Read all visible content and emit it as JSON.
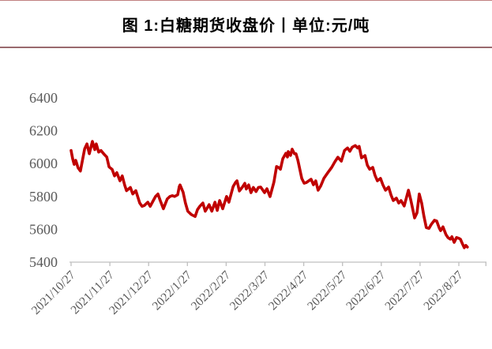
{
  "figure": {
    "title": "图 1:白糖期货收盘价丨单位:元/吨"
  },
  "chart_data": {
    "type": "line",
    "title": "白糖期货收盘价",
    "unit": "元/吨",
    "xlabel": "",
    "ylabel": "",
    "ylim": [
      5400,
      6400
    ],
    "y_ticks": [
      6400,
      6200,
      6000,
      5800,
      5600,
      5400
    ],
    "x_labels": [
      "2021/10/27",
      "2021/11/27",
      "2021/12/27",
      "2022/1/27",
      "2022/2/27",
      "2022/3/27",
      "2022/4/27",
      "2022/5/27",
      "2022/6/27",
      "2022/7/27",
      "2022/8/27"
    ],
    "grid": false,
    "legend": "none",
    "x_unit": "months_after_2021_10_27",
    "series": [
      {
        "name": "白糖期货收盘价",
        "color": "#C00000",
        "points": [
          [
            0.0,
            6080
          ],
          [
            0.04,
            6030
          ],
          [
            0.08,
            5995
          ],
          [
            0.12,
            6020
          ],
          [
            0.18,
            5975
          ],
          [
            0.24,
            5955
          ],
          [
            0.31,
            6040
          ],
          [
            0.35,
            6090
          ],
          [
            0.41,
            6120
          ],
          [
            0.47,
            6060
          ],
          [
            0.55,
            6135
          ],
          [
            0.61,
            6085
          ],
          [
            0.65,
            6120
          ],
          [
            0.71,
            6070
          ],
          [
            0.77,
            6080
          ],
          [
            0.86,
            6055
          ],
          [
            0.92,
            6040
          ],
          [
            0.98,
            5980
          ],
          [
            1.06,
            5965
          ],
          [
            1.12,
            5925
          ],
          [
            1.18,
            5945
          ],
          [
            1.26,
            5895
          ],
          [
            1.32,
            5925
          ],
          [
            1.38,
            5870
          ],
          [
            1.43,
            5835
          ],
          [
            1.53,
            5855
          ],
          [
            1.59,
            5815
          ],
          [
            1.67,
            5835
          ],
          [
            1.77,
            5760
          ],
          [
            1.83,
            5740
          ],
          [
            1.89,
            5745
          ],
          [
            1.98,
            5765
          ],
          [
            2.04,
            5740
          ],
          [
            2.12,
            5775
          ],
          [
            2.18,
            5800
          ],
          [
            2.24,
            5815
          ],
          [
            2.3,
            5775
          ],
          [
            2.38,
            5725
          ],
          [
            2.48,
            5785
          ],
          [
            2.55,
            5800
          ],
          [
            2.61,
            5805
          ],
          [
            2.67,
            5800
          ],
          [
            2.75,
            5810
          ],
          [
            2.79,
            5860
          ],
          [
            2.81,
            5870
          ],
          [
            2.89,
            5825
          ],
          [
            2.95,
            5760
          ],
          [
            3.01,
            5710
          ],
          [
            3.1,
            5690
          ],
          [
            3.2,
            5678
          ],
          [
            3.26,
            5720
          ],
          [
            3.32,
            5740
          ],
          [
            3.4,
            5760
          ],
          [
            3.46,
            5710
          ],
          [
            3.56,
            5750
          ],
          [
            3.63,
            5710
          ],
          [
            3.71,
            5765
          ],
          [
            3.77,
            5715
          ],
          [
            3.83,
            5775
          ],
          [
            3.91,
            5725
          ],
          [
            4.01,
            5800
          ],
          [
            4.07,
            5765
          ],
          [
            4.18,
            5860
          ],
          [
            4.24,
            5885
          ],
          [
            4.28,
            5895
          ],
          [
            4.34,
            5833
          ],
          [
            4.42,
            5857
          ],
          [
            4.48,
            5880
          ],
          [
            4.52,
            5845
          ],
          [
            4.58,
            5870
          ],
          [
            4.64,
            5823
          ],
          [
            4.7,
            5855
          ],
          [
            4.77,
            5830
          ],
          [
            4.83,
            5855
          ],
          [
            4.89,
            5857
          ],
          [
            4.99,
            5823
          ],
          [
            5.05,
            5847
          ],
          [
            5.13,
            5799
          ],
          [
            5.23,
            5886
          ],
          [
            5.3,
            5982
          ],
          [
            5.36,
            5975
          ],
          [
            5.4,
            5966
          ],
          [
            5.46,
            6030
          ],
          [
            5.54,
            6063
          ],
          [
            5.58,
            6040
          ],
          [
            5.6,
            6073
          ],
          [
            5.66,
            6050
          ],
          [
            5.7,
            6088
          ],
          [
            5.76,
            6060
          ],
          [
            5.8,
            6060
          ],
          [
            5.85,
            6020
          ],
          [
            5.91,
            5953
          ],
          [
            5.95,
            5910
          ],
          [
            6.01,
            5881
          ],
          [
            6.07,
            5885
          ],
          [
            6.13,
            5895
          ],
          [
            6.19,
            5905
          ],
          [
            6.25,
            5871
          ],
          [
            6.31,
            5895
          ],
          [
            6.37,
            5838
          ],
          [
            6.44,
            5865
          ],
          [
            6.52,
            5910
          ],
          [
            6.62,
            5944
          ],
          [
            6.72,
            5977
          ],
          [
            6.8,
            6010
          ],
          [
            6.88,
            6039
          ],
          [
            6.97,
            6015
          ],
          [
            7.05,
            6080
          ],
          [
            7.13,
            6095
          ],
          [
            7.19,
            6075
          ],
          [
            7.25,
            6100
          ],
          [
            7.33,
            6110
          ],
          [
            7.39,
            6095
          ],
          [
            7.43,
            6105
          ],
          [
            7.49,
            6035
          ],
          [
            7.58,
            6049
          ],
          [
            7.64,
            5991
          ],
          [
            7.7,
            5966
          ],
          [
            7.78,
            5977
          ],
          [
            7.84,
            5928
          ],
          [
            7.9,
            5895
          ],
          [
            7.98,
            5910
          ],
          [
            8.04,
            5871
          ],
          [
            8.11,
            5838
          ],
          [
            8.19,
            5857
          ],
          [
            8.25,
            5809
          ],
          [
            8.31,
            5775
          ],
          [
            8.39,
            5790
          ],
          [
            8.45,
            5760
          ],
          [
            8.51,
            5775
          ],
          [
            8.59,
            5742
          ],
          [
            8.7,
            5838
          ],
          [
            8.76,
            5780
          ],
          [
            8.86,
            5669
          ],
          [
            8.92,
            5700
          ],
          [
            8.98,
            5815
          ],
          [
            9.04,
            5760
          ],
          [
            9.1,
            5680
          ],
          [
            9.16,
            5610
          ],
          [
            9.23,
            5606
          ],
          [
            9.29,
            5630
          ],
          [
            9.37,
            5655
          ],
          [
            9.43,
            5650
          ],
          [
            9.49,
            5610
          ],
          [
            9.53,
            5592
          ],
          [
            9.59,
            5615
          ],
          [
            9.67,
            5567
          ],
          [
            9.72,
            5549
          ],
          [
            9.78,
            5540
          ],
          [
            9.82,
            5555
          ],
          [
            9.88,
            5520
          ],
          [
            9.94,
            5550
          ],
          [
            10.0,
            5545
          ],
          [
            10.04,
            5540
          ],
          [
            10.1,
            5508
          ],
          [
            10.14,
            5488
          ],
          [
            10.18,
            5502
          ],
          [
            10.22,
            5492
          ]
        ]
      }
    ]
  },
  "colors": {
    "line": "#C00000",
    "divider": "#9a6a6e",
    "top_border": "#c08081",
    "axis": "#BFBFBF",
    "tick_label": "#595959",
    "title_text": "#000000"
  }
}
